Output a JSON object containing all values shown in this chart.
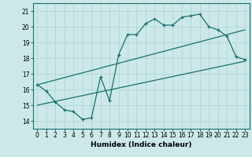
{
  "title": "",
  "xlabel": "Humidex (Indice chaleur)",
  "bg_color": "#cce8e8",
  "line_color": "#1a7070",
  "grid_color": "#b0d8d8",
  "xlim": [
    -0.5,
    23.5
  ],
  "ylim": [
    13.5,
    21.5
  ],
  "xticks": [
    0,
    1,
    2,
    3,
    4,
    5,
    6,
    7,
    8,
    9,
    10,
    11,
    12,
    13,
    14,
    15,
    16,
    17,
    18,
    19,
    20,
    21,
    22,
    23
  ],
  "yticks": [
    14,
    15,
    16,
    17,
    18,
    19,
    20,
    21
  ],
  "main_line_x": [
    0,
    1,
    2,
    3,
    4,
    5,
    6,
    7,
    8,
    9,
    10,
    11,
    12,
    13,
    14,
    15,
    16,
    17,
    18,
    19,
    20,
    21,
    22,
    23
  ],
  "main_line_y": [
    16.3,
    15.9,
    15.2,
    14.7,
    14.6,
    14.1,
    14.2,
    16.8,
    15.3,
    18.2,
    19.5,
    19.5,
    20.2,
    20.5,
    20.1,
    20.1,
    20.6,
    20.7,
    20.8,
    20.0,
    19.8,
    19.4,
    18.1,
    17.9
  ],
  "trend1_x": [
    0,
    23
  ],
  "trend1_y": [
    16.3,
    19.8
  ],
  "trend2_x": [
    0,
    23
  ],
  "trend2_y": [
    15.0,
    17.8
  ],
  "xlabel_fontsize": 6.5,
  "tick_fontsize": 5.5
}
